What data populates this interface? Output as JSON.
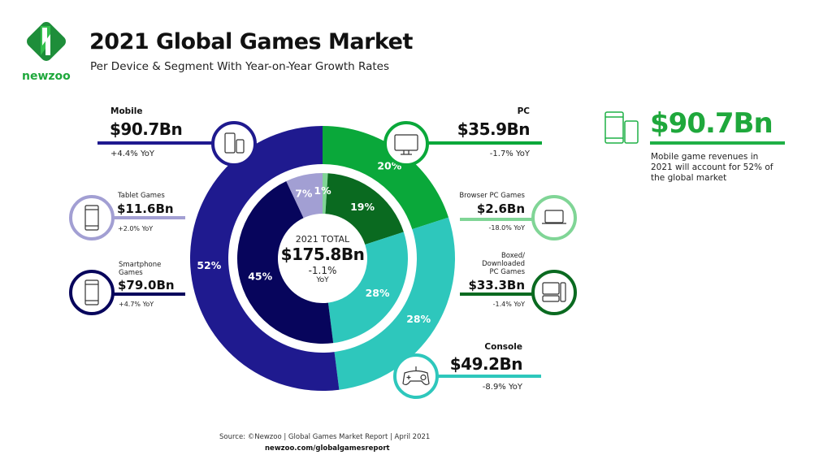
{
  "header": {
    "title": "2021 Global Games Market",
    "subtitle": "Per Device & Segment With Year-on-Year Growth Rates",
    "logo_text": "newzoo"
  },
  "colors": {
    "mobile": "#1f1a8f",
    "pc": "#0aa83a",
    "console": "#2ec7bc",
    "tablet": "#a29fd3",
    "smartphone": "#07055c",
    "browser_pc": "#80d596",
    "boxed_pc": "#0a6a20",
    "highlight": "#1fb046"
  },
  "segments": {
    "mobile": {
      "name": "Mobile",
      "value": "$90.7Bn",
      "yoy": "+4.4% YoY",
      "icon": "mobile-devices-icon"
    },
    "pc": {
      "name": "PC",
      "value": "$35.9Bn",
      "yoy": "-1.7% YoY",
      "icon": "monitor-icon"
    },
    "console": {
      "name": "Console",
      "value": "$49.2Bn",
      "yoy": "-8.9% YoY",
      "icon": "gamepad-icon"
    },
    "tablet": {
      "name": "Tablet Games",
      "value": "$11.6Bn",
      "yoy": "+2.0% YoY",
      "icon": "tablet-icon"
    },
    "smartphone": {
      "name_line1": "Smartphone",
      "name_line2": "Games",
      "value": "$79.0Bn",
      "yoy": "+4.7% YoY",
      "icon": "smartphone-icon"
    },
    "browser_pc": {
      "name": "Browser PC Games",
      "value": "$2.6Bn",
      "yoy": "-18.0% YoY",
      "icon": "laptop-icon"
    },
    "boxed_pc": {
      "name_line1": "Boxed/",
      "name_line2": "Downloaded",
      "name_line3": "PC Games",
      "value": "$33.3Bn",
      "yoy": "-1.4% YoY",
      "icon": "desktop-computer-icon"
    }
  },
  "center": {
    "label": "2021 TOTAL",
    "value": "$175.8Bn",
    "yoy": "-1.1%",
    "yoy_unit": "YoY"
  },
  "highlight": {
    "value": "$90.7Bn",
    "text": "Mobile game revenues in 2021 will account for 52% of the global market"
  },
  "footer": {
    "source": "Source: ©Newzoo | Global Games Market Report | April 2021",
    "url": "newzoo.com/globalgamesreport"
  },
  "chart_data": [
    {
      "type": "pie",
      "ring": "outer",
      "categories": [
        "PC",
        "Console",
        "Mobile"
      ],
      "values": [
        20,
        28,
        52
      ],
      "labels": [
        "20%",
        "28%",
        "52%"
      ],
      "color_keys": [
        "pc",
        "console",
        "mobile"
      ]
    },
    {
      "type": "pie",
      "ring": "inner",
      "categories": [
        "Browser PC Games",
        "Boxed/Downloaded PC Games",
        "Console",
        "Smartphone Games",
        "Tablet Games"
      ],
      "values": [
        1,
        19,
        28,
        45,
        7
      ],
      "labels": [
        "1%",
        "19%",
        "28%",
        "45%",
        "7%"
      ],
      "color_keys": [
        "browser_pc",
        "boxed_pc",
        "console",
        "smartphone",
        "tablet"
      ]
    }
  ]
}
